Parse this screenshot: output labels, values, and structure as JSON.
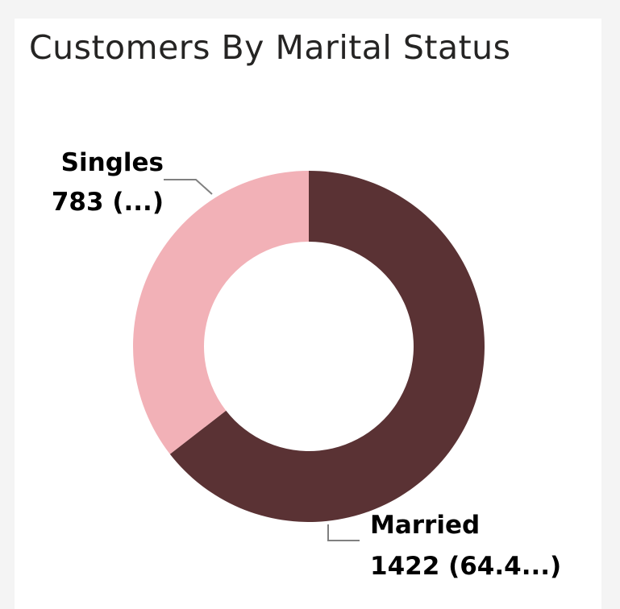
{
  "title": "Customers By Marital Status",
  "chart_data": {
    "type": "pie",
    "style": "donut",
    "title": "Customers By Marital Status",
    "series": [
      {
        "name": "Married",
        "value": 1422,
        "percent_label": "64.4...",
        "color": "#5a3234"
      },
      {
        "name": "Singles",
        "value": 783,
        "percent_label": "...",
        "color": "#f2b1b7"
      }
    ],
    "labels": [
      {
        "category": "Married",
        "value_text": "1422 (64.4...)"
      },
      {
        "category": "Singles",
        "value_text": "783 (...)"
      }
    ],
    "leader_line_color": "#808080"
  }
}
